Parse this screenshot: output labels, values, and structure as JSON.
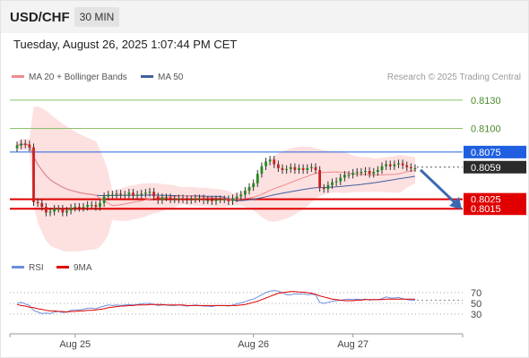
{
  "header": {
    "symbol": "USD/CHF",
    "timeframe": "30 MIN"
  },
  "timestamp": "Tuesday, August 26, 2025 1:07:44 PM CET",
  "legend": {
    "ma": "MA 20 + Bollinger Bands",
    "ma50": "MA 50",
    "rsi": "RSI",
    "ma9": "9MA"
  },
  "credit": "Research © 2025 Trading Central",
  "colors": {
    "ma20": "#f08a8a",
    "ma50": "#40609e",
    "bands": "#fde0e0",
    "up": "#1f8a1f",
    "down": "#c81e1e",
    "support": "#e00000",
    "resistance": "#2060e0",
    "target": "#8dc06a",
    "rsi": "#6d8fe0",
    "ma9": "#e00000"
  },
  "chart_data": [
    {
      "type": "candlestick",
      "x_ticks": [
        "Aug 25",
        "Aug 26",
        "Aug 27"
      ],
      "ylim": [
        0.7965,
        0.8145
      ],
      "series": [
        {
          "name": "USD/CHF",
          "close": [
            0.8082,
            0.8084,
            0.8083,
            0.808,
            0.8022,
            0.8021,
            0.8017,
            0.8011,
            0.8012,
            0.8015,
            0.8015,
            0.8011,
            0.8013,
            0.8016,
            0.8017,
            0.8016,
            0.8017,
            0.8019,
            0.8019,
            0.8017,
            0.8021,
            0.8028,
            0.803,
            0.803,
            0.8031,
            0.803,
            0.803,
            0.8032,
            0.8029,
            0.803,
            0.8031,
            0.8032,
            0.8033,
            0.8028,
            0.8024,
            0.8027,
            0.8027,
            0.8025,
            0.8025,
            0.8026,
            0.8025,
            0.8024,
            0.8025,
            0.8026,
            0.8026,
            0.8024,
            0.8024,
            0.8023,
            0.8025,
            0.8025,
            0.8025,
            0.8023,
            0.8026,
            0.8028,
            0.803,
            0.8034,
            0.8038,
            0.8042,
            0.8052,
            0.806,
            0.8065,
            0.8067,
            0.8062,
            0.8058,
            0.8056,
            0.8057,
            0.8059,
            0.8056,
            0.8058,
            0.8056,
            0.8058,
            0.8059,
            0.8056,
            0.8037,
            0.8036,
            0.804,
            0.8043,
            0.8044,
            0.8048,
            0.8051,
            0.8051,
            0.8053,
            0.8054,
            0.8054,
            0.8055,
            0.8052,
            0.8054,
            0.8056,
            0.806,
            0.8062,
            0.806,
            0.8062,
            0.8063,
            0.8061,
            0.8059,
            0.8058,
            0.8058
          ]
        }
      ],
      "levels": [
        {
          "label": "0.8130",
          "value": 0.813,
          "kind": "target"
        },
        {
          "label": "0.8100",
          "value": 0.81,
          "kind": "target"
        },
        {
          "label": "0.8075",
          "value": 0.8075,
          "kind": "resistance"
        },
        {
          "label": "0.8059",
          "value": 0.8059,
          "kind": "last"
        },
        {
          "label": "0.8025",
          "value": 0.8025,
          "kind": "support"
        },
        {
          "label": "0.8015",
          "value": 0.8015,
          "kind": "support"
        }
      ]
    },
    {
      "type": "line",
      "y_ticks": [
        "70",
        "50",
        "30"
      ],
      "ylim": [
        10,
        90
      ],
      "series": [
        {
          "name": "RSI",
          "values": [
            50,
            52,
            49,
            46,
            37,
            34,
            31,
            32,
            31,
            34,
            35,
            33,
            34,
            37,
            38,
            38,
            39,
            41,
            41,
            40,
            43,
            45,
            47,
            46,
            47,
            46,
            47,
            48,
            47,
            48,
            49,
            50,
            50,
            48,
            46,
            47,
            47,
            46,
            46,
            47,
            46,
            45,
            46,
            47,
            46,
            45,
            45,
            44,
            46,
            46,
            46,
            45,
            47,
            49,
            51,
            53,
            56,
            58,
            62,
            66,
            70,
            73,
            74,
            73,
            70,
            66,
            66,
            68,
            67,
            68,
            66,
            67,
            66,
            52,
            50,
            52,
            54,
            55,
            56,
            57,
            58,
            57,
            58,
            57,
            58,
            56,
            57,
            57,
            59,
            62,
            60,
            60,
            61,
            59,
            57,
            56,
            56
          ]
        },
        {
          "name": "9MA",
          "values": [
            48,
            46,
            45,
            43,
            42,
            40,
            39,
            37,
            36,
            36,
            35,
            35,
            34,
            35,
            35,
            36,
            36,
            37,
            37,
            38,
            39,
            40,
            42,
            43,
            44,
            45,
            45,
            46,
            46,
            47,
            47,
            47,
            48,
            48,
            48,
            48,
            47,
            47,
            47,
            47,
            47,
            46,
            46,
            46,
            46,
            46,
            46,
            46,
            46,
            46,
            46,
            46,
            46,
            46,
            47,
            48,
            50,
            52,
            54,
            57,
            60,
            63,
            66,
            69,
            70,
            71,
            72,
            72,
            71,
            71,
            70,
            69,
            67,
            64,
            62,
            60,
            58,
            57,
            56,
            55,
            55,
            55,
            56,
            56,
            57,
            57,
            57,
            57,
            57,
            58,
            58,
            58,
            58,
            58,
            58,
            58,
            58
          ]
        }
      ]
    }
  ]
}
